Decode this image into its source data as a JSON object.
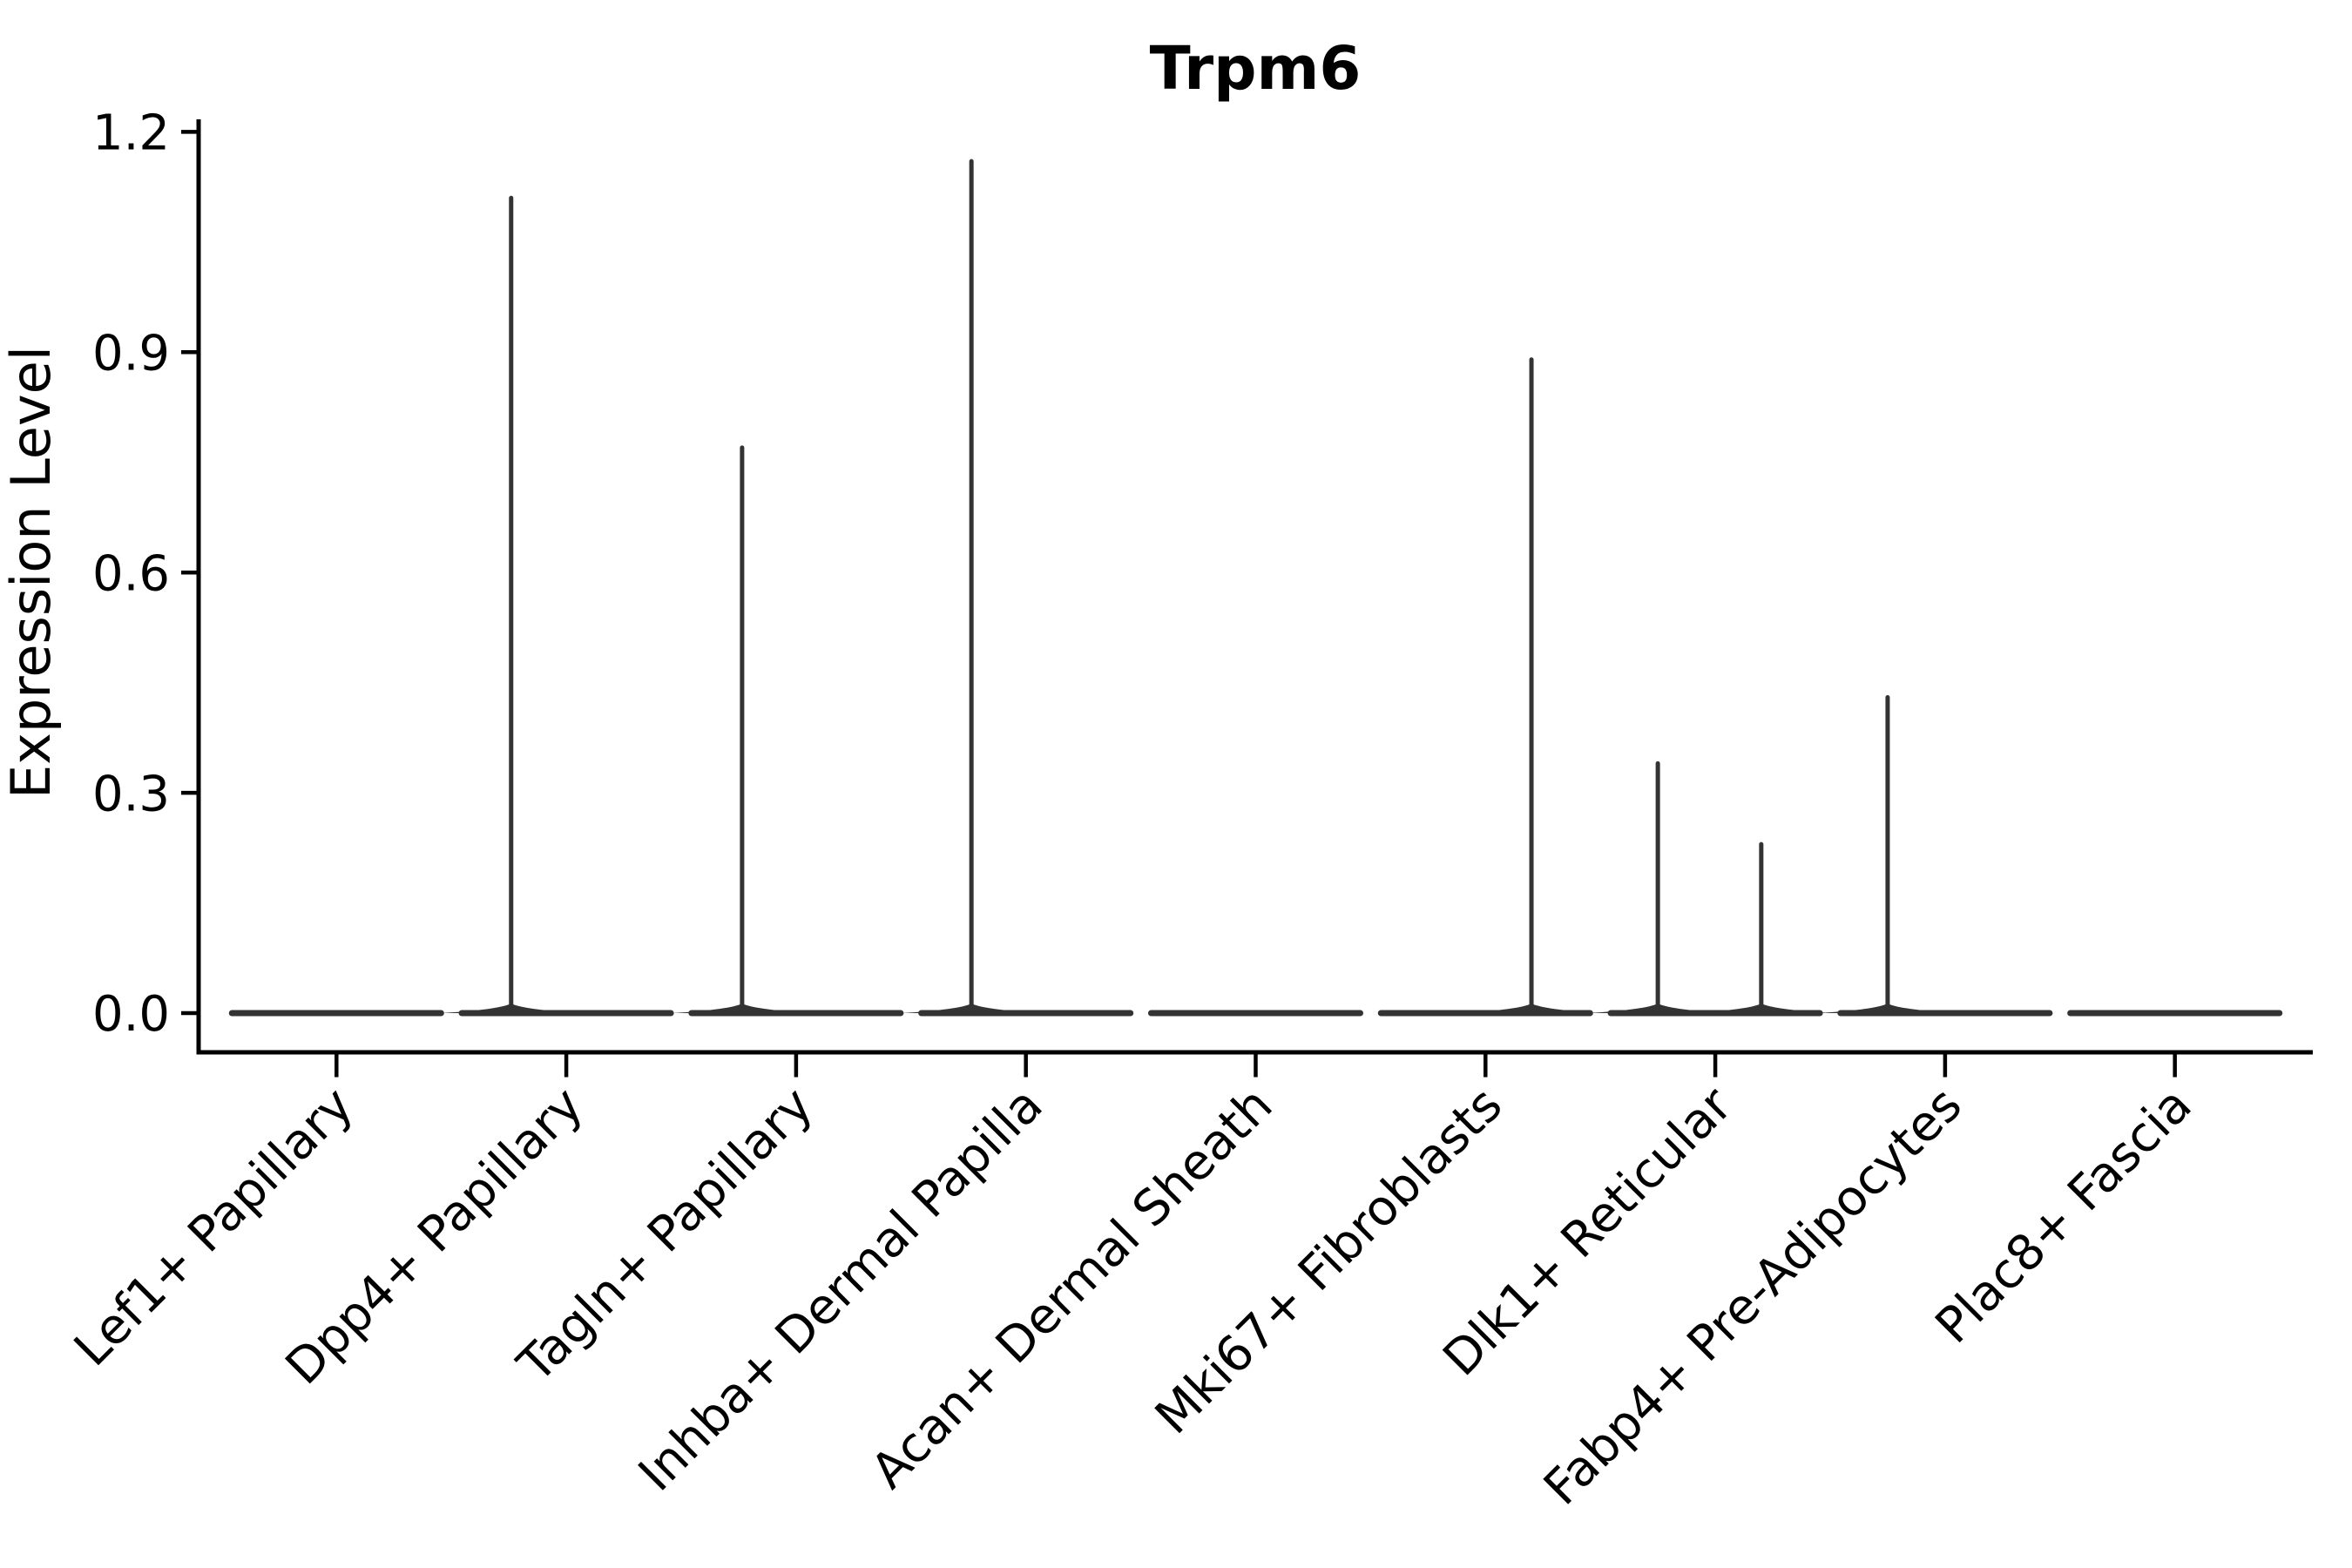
{
  "title": "Trpm6",
  "y_axis": {
    "label": "Expression Level",
    "tick_labels": [
      "0.0",
      "0.3",
      "0.6",
      "0.9",
      "1.2"
    ]
  },
  "colors": {
    "violin": "#333333",
    "axis": "#000000",
    "text": "#000000",
    "background": "#ffffff"
  },
  "chart_data": {
    "type": "violin",
    "title": "Trpm6",
    "xlabel": "",
    "ylabel": "Expression Level",
    "ylim": [
      -0.05,
      1.22
    ],
    "grid": false,
    "legend": "none",
    "yticks": [
      0.0,
      0.3,
      0.6,
      0.9,
      1.2
    ],
    "ytick_labels": [
      "0.0",
      "0.3",
      "0.6",
      "0.9",
      "1.2"
    ],
    "categories": [
      "Lef1+ Papillary",
      "Dpp4+ Papillary",
      "Tagln+ Papillary",
      "Inhba+ Dermal Papilla",
      "Acan+ Dermal Sheath",
      "Mki67+ Fibroblasts",
      "Dlk1+ Reticular",
      "Fabp4+ Pre-Adipocytes",
      "Plac8+ Fascia"
    ],
    "baseline_value": 0.0,
    "violin_base_width": 0.91,
    "violins": [
      {
        "spikes": []
      },
      {
        "spikes": [
          {
            "dx": -0.24,
            "max": 1.11
          }
        ]
      },
      {
        "spikes": [
          {
            "dx": -0.235,
            "max": 0.77
          }
        ]
      },
      {
        "spikes": [
          {
            "dx": -0.237,
            "max": 1.16
          }
        ]
      },
      {
        "spikes": []
      },
      {
        "spikes": [
          {
            "dx": 0.2,
            "max": 0.89
          }
        ]
      },
      {
        "spikes": [
          {
            "dx": -0.25,
            "max": 0.34
          },
          {
            "dx": 0.2,
            "max": 0.23
          }
        ]
      },
      {
        "spikes": [
          {
            "dx": -0.25,
            "max": 0.43
          }
        ]
      },
      {
        "spikes": []
      }
    ]
  }
}
